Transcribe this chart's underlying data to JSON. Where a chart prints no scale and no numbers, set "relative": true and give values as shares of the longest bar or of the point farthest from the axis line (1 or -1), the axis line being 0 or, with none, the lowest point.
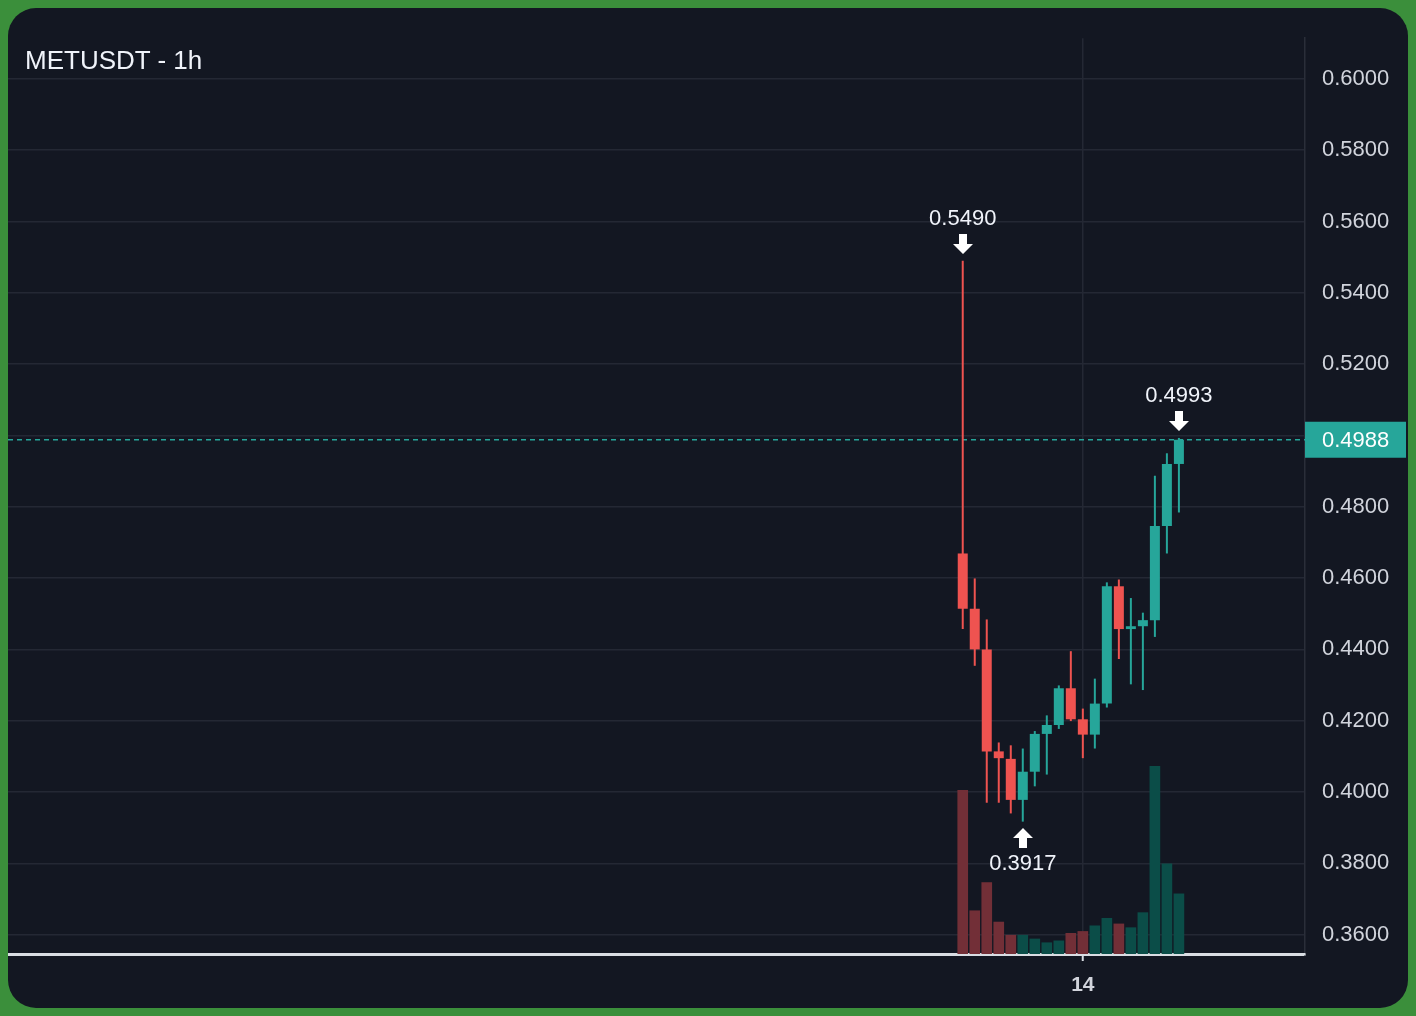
{
  "chart_data": [
    {
      "type": "candlestick",
      "title": "METUSDT - 1h",
      "categories": [
        null,
        null,
        null,
        null,
        null,
        null,
        null,
        null,
        null,
        null,
        null,
        null,
        null,
        null,
        null,
        null,
        null,
        null,
        null,
        null,
        null,
        null,
        null,
        null,
        null,
        null,
        null,
        null,
        null,
        null,
        null,
        null,
        null,
        null,
        null,
        null,
        null,
        null,
        null,
        null,
        null,
        null,
        null,
        null,
        null,
        null,
        null,
        null,
        null,
        null,
        null,
        null,
        null,
        null,
        null,
        null,
        null,
        null,
        null,
        null,
        null,
        null,
        null,
        null,
        null,
        null,
        null,
        null,
        null,
        null,
        null,
        null,
        null,
        null,
        null,
        null,
        null,
        null,
        null,
        null,
        null,
        null,
        null,
        null,
        null,
        null,
        null,
        null,
        null,
        "14",
        null,
        null,
        null,
        null,
        null,
        null,
        null,
        null,
        null,
        null,
        null,
        null,
        null,
        null,
        null,
        null,
        null,
        null
      ],
      "ohlc": [
        null,
        null,
        null,
        null,
        null,
        null,
        null,
        null,
        null,
        null,
        null,
        null,
        null,
        null,
        null,
        null,
        null,
        null,
        null,
        null,
        null,
        null,
        null,
        null,
        null,
        null,
        null,
        null,
        null,
        null,
        null,
        null,
        null,
        null,
        null,
        null,
        null,
        null,
        null,
        null,
        null,
        null,
        null,
        null,
        null,
        null,
        null,
        null,
        null,
        null,
        null,
        null,
        null,
        null,
        null,
        null,
        null,
        null,
        null,
        null,
        null,
        null,
        null,
        null,
        null,
        null,
        null,
        null,
        null,
        null,
        null,
        null,
        null,
        null,
        null,
        null,
        null,
        null,
        null,
        [
          0.4669,
          0.549,
          0.4457,
          0.4514
        ],
        [
          0.4514,
          0.4599,
          0.4354,
          0.44
        ],
        [
          0.44,
          0.4484,
          0.397,
          0.4114
        ],
        [
          0.4114,
          0.4139,
          0.397,
          0.4095
        ],
        [
          0.4093,
          0.4131,
          0.394,
          0.3978
        ],
        [
          0.3978,
          0.4122,
          0.3917,
          0.4057
        ],
        [
          0.4057,
          0.4171,
          0.4016,
          0.4163
        ],
        [
          0.4163,
          0.4215,
          0.4049,
          0.4188
        ],
        [
          0.4188,
          0.4299,
          0.4177,
          0.4291
        ],
        [
          0.4291,
          0.4395,
          0.4199,
          0.4204
        ],
        [
          0.4204,
          0.4234,
          0.4095,
          0.4161
        ],
        [
          0.4161,
          0.4318,
          0.4122,
          0.4248
        ],
        [
          0.4248,
          0.4588,
          0.4237,
          0.4577
        ],
        [
          0.4577,
          0.4596,
          0.4373,
          0.4457
        ],
        [
          0.4457,
          0.4544,
          0.4302,
          0.4465
        ],
        [
          0.4465,
          0.4503,
          0.4286,
          0.4482
        ],
        [
          0.4482,
          0.4887,
          0.4435,
          0.4746
        ],
        [
          0.4746,
          0.495,
          0.4669,
          0.492
        ],
        [
          0.492,
          0.4993,
          0.4784,
          0.4988
        ],
        null,
        null,
        null,
        null,
        null,
        null,
        null,
        null,
        null,
        null
      ],
      "colors": [
        null,
        null,
        null,
        null,
        null,
        null,
        null,
        null,
        null,
        null,
        null,
        null,
        null,
        null,
        null,
        null,
        null,
        null,
        null,
        null,
        null,
        null,
        null,
        null,
        null,
        null,
        null,
        null,
        null,
        null,
        null,
        null,
        null,
        null,
        null,
        null,
        null,
        null,
        null,
        null,
        null,
        null,
        null,
        null,
        null,
        null,
        null,
        null,
        null,
        null,
        null,
        null,
        null,
        null,
        null,
        null,
        null,
        null,
        null,
        null,
        null,
        null,
        null,
        null,
        null,
        null,
        null,
        null,
        null,
        null,
        null,
        null,
        null,
        null,
        null,
        null,
        null,
        null,
        null,
        "#ef5350",
        "#ef5350",
        "#ef5350",
        "#ef5350",
        "#ef5350",
        "#26a69a",
        "#26a69a",
        "#26a69a",
        "#26a69a",
        "#ef5350",
        "#ef5350",
        "#26a69a",
        "#26a69a",
        "#ef5350",
        "#26a69a",
        "#26a69a",
        "#26a69a",
        "#26a69a",
        "#26a69a",
        null,
        null,
        null,
        null,
        null,
        null,
        null,
        null,
        null,
        null
      ],
      "ylim": [
        0.3543,
        0.6114
      ],
      "yticks": [
        {
          "value": 0.36,
          "label": "0.3600"
        },
        {
          "value": 0.38,
          "label": "0.3800"
        },
        {
          "value": 0.4,
          "label": "0.4000"
        },
        {
          "value": 0.42,
          "label": "0.4200"
        },
        {
          "value": 0.44,
          "label": "0.4400"
        },
        {
          "value": 0.46,
          "label": "0.4600"
        },
        {
          "value": 0.48,
          "label": "0.4800"
        },
        {
          "value": 0.5,
          "label": null
        },
        {
          "value": 0.52,
          "label": "0.5200"
        },
        {
          "value": 0.54,
          "label": "0.5400"
        },
        {
          "value": 0.56,
          "label": "0.5600"
        },
        {
          "value": 0.58,
          "label": "0.5800"
        },
        {
          "value": 0.6,
          "label": "0.6000"
        }
      ],
      "grid": true,
      "ref_lines": [
        {
          "axis": "y",
          "value": 0.4988,
          "label": "0.4988",
          "color": "#26a69a",
          "line_style": "dashed"
        }
      ],
      "annotations": [
        "0.5490",
        "0.3917",
        "0.4993"
      ]
    },
    {
      "type": "bar",
      "relative": true,
      "categories": [
        null,
        null,
        null,
        null,
        null,
        null,
        null,
        null,
        null,
        null,
        null,
        null,
        null,
        null,
        null,
        null,
        null,
        null,
        null,
        null,
        null,
        null,
        null,
        null,
        null,
        null,
        null,
        null,
        null,
        null,
        null,
        null,
        null,
        null,
        null,
        null,
        null,
        null,
        null,
        null,
        null,
        null,
        null,
        null,
        null,
        null,
        null,
        null,
        null,
        null,
        null,
        null,
        null,
        null,
        null,
        null,
        null,
        null,
        null,
        null,
        null,
        null,
        null,
        null,
        null,
        null,
        null,
        null,
        null,
        null,
        null,
        null,
        null,
        null,
        null,
        null,
        null,
        null,
        null,
        null,
        null,
        null,
        null,
        null,
        null,
        null,
        null,
        null,
        null,
        null,
        null,
        null,
        null,
        null,
        null,
        null,
        null,
        null,
        null,
        null,
        null,
        null,
        null,
        null,
        null,
        null,
        null,
        null
      ],
      "values": [
        null,
        null,
        null,
        null,
        null,
        null,
        null,
        null,
        null,
        null,
        null,
        null,
        null,
        null,
        null,
        null,
        null,
        null,
        null,
        null,
        null,
        null,
        null,
        null,
        null,
        null,
        null,
        null,
        null,
        null,
        null,
        null,
        null,
        null,
        null,
        null,
        null,
        null,
        null,
        null,
        null,
        null,
        null,
        null,
        null,
        null,
        null,
        null,
        null,
        null,
        null,
        null,
        null,
        null,
        null,
        null,
        null,
        null,
        null,
        null,
        null,
        null,
        null,
        null,
        null,
        null,
        null,
        null,
        null,
        null,
        null,
        null,
        null,
        null,
        null,
        null,
        null,
        null,
        null,
        0.87,
        0.23,
        0.38,
        0.17,
        0.1,
        0.1,
        0.08,
        0.06,
        0.07,
        0.11,
        0.12,
        0.15,
        0.19,
        0.16,
        0.14,
        0.22,
        1,
        0.48,
        0.32,
        null,
        null,
        null,
        null,
        null,
        null,
        null,
        null,
        null,
        null
      ],
      "colors": [
        null,
        null,
        null,
        null,
        null,
        null,
        null,
        null,
        null,
        null,
        null,
        null,
        null,
        null,
        null,
        null,
        null,
        null,
        null,
        null,
        null,
        null,
        null,
        null,
        null,
        null,
        null,
        null,
        null,
        null,
        null,
        null,
        null,
        null,
        null,
        null,
        null,
        null,
        null,
        null,
        null,
        null,
        null,
        null,
        null,
        null,
        null,
        null,
        null,
        null,
        null,
        null,
        null,
        null,
        null,
        null,
        null,
        null,
        null,
        null,
        null,
        null,
        null,
        null,
        null,
        null,
        null,
        null,
        null,
        null,
        null,
        null,
        null,
        null,
        null,
        null,
        null,
        null,
        null,
        "#722f37",
        "#722f37",
        "#722f37",
        "#722f37",
        "#722f37",
        "#0b4d48",
        "#0b4d48",
        "#0b4d48",
        "#0b4d48",
        "#722f37",
        "#722f37",
        "#0b4d48",
        "#0b4d48",
        "#722f37",
        "#0b4d48",
        "#0b4d48",
        "#0b4d48",
        "#0b4d48",
        "#0b4d48",
        null,
        null,
        null,
        null,
        null,
        null,
        null,
        null,
        null,
        null
      ]
    }
  ]
}
